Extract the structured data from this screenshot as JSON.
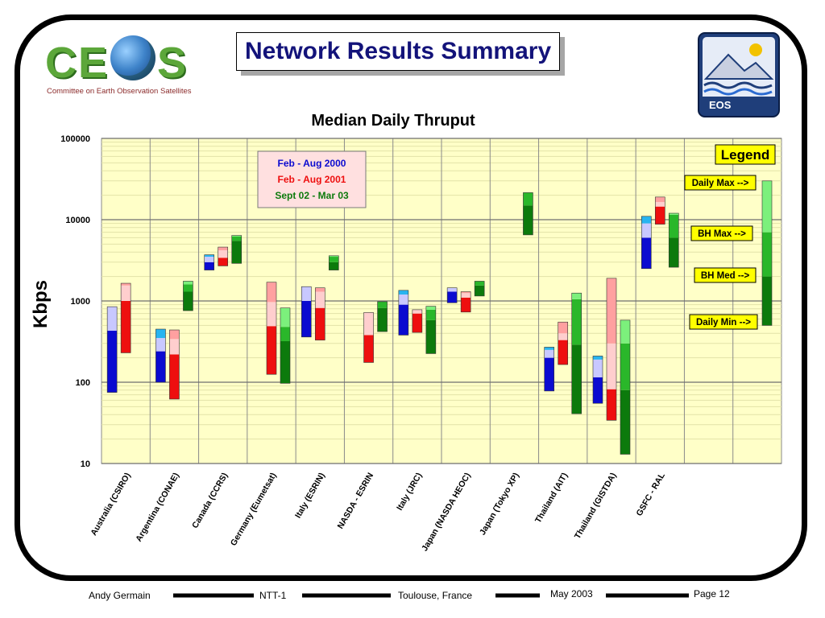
{
  "logo": {
    "letters": [
      "C",
      "E",
      "S"
    ],
    "subtitle": "Committee on Earth Observation Satellites"
  },
  "title": "Network Results Summary",
  "eos_logo": {
    "label": "EOS"
  },
  "footer": {
    "author": "Andy Germain",
    "meeting": "NTT-1",
    "location": "Toulouse, France",
    "date": "May 2003",
    "page": "Page 12"
  },
  "colors": {
    "period1_dark": "#0b0bd0",
    "period1_light": "#c8c8ff",
    "period1_top": "#28b4f0",
    "period2_dark": "#ee0f0f",
    "period2_light": "#ffcece",
    "period2_top": "#ffa0a0",
    "period3_dark": "#0c7a0c",
    "period3_mid": "#2ab72a",
    "period3_light": "#7cf07c",
    "plot_bg": "#ffffc8",
    "legend_bg": "#ffff00",
    "key_bg": "#ffe0e0"
  },
  "chart_data": {
    "type": "bar",
    "subtype": "floating range bars",
    "title": "Median Daily Thruput",
    "ylabel": "Kbps",
    "yscale": "log",
    "ylim": [
      10,
      100000
    ],
    "ytick_labels": [
      "100000",
      "10000",
      "1000",
      "100",
      "10"
    ],
    "grid": true,
    "categories": [
      "Australia (CSIRO)",
      "Argentina (CONAE)",
      "Canada (CCRS)",
      "Germany (Eumetsat)",
      "Italy (ESRIN)",
      "NASDA - ESRIN",
      "Italy (JRC)",
      "Japan (NASDA HEOC)",
      "Japan (Tokyo XP)",
      "Thailand (AIT)",
      "Thailand (GISTDA)",
      "GSFC - RAL"
    ],
    "series": [
      {
        "name": "Feb - Aug 2000",
        "points": [
          {
            "category": "Australia (CSIRO)",
            "daily_min": 75,
            "bh_med": 430,
            "bh_max": 850,
            "daily_max": 850
          },
          {
            "category": "Argentina (CONAE)",
            "daily_min": 100,
            "bh_med": 240,
            "bh_max": 350,
            "daily_max": 450
          },
          {
            "category": "Canada (CCRS)",
            "daily_min": 2400,
            "bh_med": 3000,
            "bh_max": 3500,
            "daily_max": 3700
          },
          {
            "category": "Italy (ESRIN)",
            "daily_min": 360,
            "bh_med": 1000,
            "bh_max": 1500,
            "daily_max": 1500
          },
          {
            "category": "Italy (JRC)",
            "daily_min": 380,
            "bh_med": 900,
            "bh_max": 1200,
            "daily_max": 1350
          },
          {
            "category": "Japan (NASDA HEOC)",
            "daily_min": 950,
            "bh_med": 1300,
            "bh_max": 1450,
            "daily_max": 1450
          },
          {
            "category": "Thailand (AIT)",
            "daily_min": 78,
            "bh_med": 200,
            "bh_max": 250,
            "daily_max": 270
          },
          {
            "category": "Thailand (GISTDA)",
            "daily_min": 55,
            "bh_med": 115,
            "bh_max": 190,
            "daily_max": 210
          },
          {
            "category": "GSFC - RAL",
            "daily_min": 2500,
            "bh_med": 6000,
            "bh_max": 9000,
            "daily_max": 11000
          }
        ]
      },
      {
        "name": "Feb - Aug 2001",
        "points": [
          {
            "category": "Australia (CSIRO)",
            "daily_min": 230,
            "bh_med": 1000,
            "bh_max": 1550,
            "daily_max": 1650
          },
          {
            "category": "Argentina (CONAE)",
            "daily_min": 62,
            "bh_med": 220,
            "bh_max": 340,
            "daily_max": 440
          },
          {
            "category": "Canada (CCRS)",
            "daily_min": 2700,
            "bh_med": 3400,
            "bh_max": 4200,
            "daily_max": 4600
          },
          {
            "category": "Germany (Eumetsat)",
            "daily_min": 125,
            "bh_med": 490,
            "bh_max": 970,
            "daily_max": 1700
          },
          {
            "category": "Italy (ESRIN)",
            "daily_min": 330,
            "bh_med": 820,
            "bh_max": 1300,
            "daily_max": 1450
          },
          {
            "category": "NASDA - ESRIN",
            "daily_min": 175,
            "bh_med": 380,
            "bh_max": 720,
            "daily_max": 720
          },
          {
            "category": "Italy (JRC)",
            "daily_min": 410,
            "bh_med": 700,
            "bh_max": 780,
            "daily_max": 780
          },
          {
            "category": "Japan (NASDA HEOC)",
            "daily_min": 730,
            "bh_med": 1100,
            "bh_max": 1250,
            "daily_max": 1300
          },
          {
            "category": "Thailand (AIT)",
            "daily_min": 165,
            "bh_med": 330,
            "bh_max": 400,
            "daily_max": 550
          },
          {
            "category": "Thailand (GISTDA)",
            "daily_min": 34,
            "bh_med": 82,
            "bh_max": 300,
            "daily_max": 1900
          },
          {
            "category": "GSFC - RAL",
            "daily_min": 8800,
            "bh_med": 14500,
            "bh_max": 16500,
            "daily_max": 19000
          }
        ]
      },
      {
        "name": "Sept 02 - Mar 03",
        "points": [
          {
            "category": "Argentina (CONAE)",
            "daily_min": 760,
            "bh_med": 1300,
            "bh_max": 1600,
            "daily_max": 1750
          },
          {
            "category": "Canada (CCRS)",
            "daily_min": 2900,
            "bh_med": 5500,
            "bh_max": 6200,
            "daily_max": 6400
          },
          {
            "category": "Germany (Eumetsat)",
            "daily_min": 97,
            "bh_med": 320,
            "bh_max": 480,
            "daily_max": 820
          },
          {
            "category": "Italy (ESRIN)",
            "daily_min": 2400,
            "bh_med": 3000,
            "bh_max": 3500,
            "daily_max": 3600
          },
          {
            "category": "NASDA - ESRIN",
            "daily_min": 420,
            "bh_med": 820,
            "bh_max": 980,
            "daily_max": 980
          },
          {
            "category": "Italy (JRC)",
            "daily_min": 225,
            "bh_med": 580,
            "bh_max": 780,
            "daily_max": 860
          },
          {
            "category": "Japan (NASDA HEOC)",
            "daily_min": 1150,
            "bh_med": 1550,
            "bh_max": 1750,
            "daily_max": 1750
          },
          {
            "category": "Japan (Tokyo XP)",
            "daily_min": 6500,
            "bh_med": 15000,
            "bh_max": 21500,
            "daily_max": 21500
          },
          {
            "category": "Thailand (AIT)",
            "daily_min": 41,
            "bh_med": 290,
            "bh_max": 1050,
            "daily_max": 1250
          },
          {
            "category": "Thailand (GISTDA)",
            "daily_min": 13,
            "bh_med": 80,
            "bh_max": 300,
            "daily_max": 580
          },
          {
            "category": "GSFC - RAL",
            "daily_min": 2600,
            "bh_med": 6000,
            "bh_max": 11500,
            "daily_max": 12000
          }
        ]
      }
    ],
    "series_key": [
      "Feb - Aug 2000",
      "Feb - Aug 2001",
      "Sept 02 - Mar 03"
    ],
    "legend": {
      "title": "Legend",
      "labels": [
        "Daily Max -->",
        "BH Max -->",
        "BH Med -->",
        "Daily Min -->"
      ],
      "sample_bar": {
        "daily_min": 500,
        "bh_med": 2000,
        "bh_max": 7000,
        "daily_max": 30000
      }
    }
  }
}
